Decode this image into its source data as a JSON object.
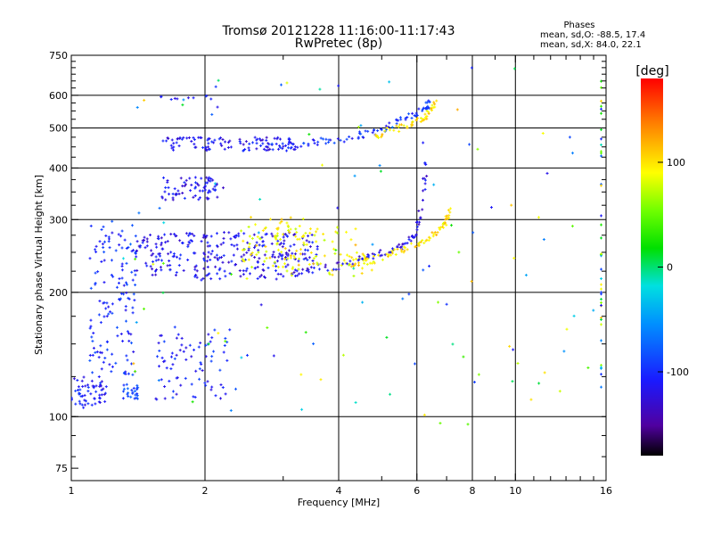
{
  "chart_data": {
    "type": "scatter",
    "title": "Tromsø 20121228 11:16:00-11:17:43",
    "subtitle": "RwPretec (8p)",
    "xlabel": "Frequency [MHz]",
    "ylabel": "Stationary phase Virtual Height [km]",
    "x_scale": "log",
    "y_scale": "log",
    "xlim": [
      1,
      16
    ],
    "ylim": [
      70,
      750
    ],
    "x_ticks": [
      1,
      2,
      4,
      6,
      8,
      10,
      16
    ],
    "y_ticks": [
      75,
      100,
      200,
      300,
      400,
      500,
      600,
      750
    ],
    "grid": true,
    "stats": {
      "heading": "Phases",
      "line1": "mean, sd,O: -88.5, 17.4",
      "line2": "mean, sd,X:  84.0, 22.1"
    },
    "colorbar": {
      "label": "[deg]",
      "range": [
        -180,
        180
      ],
      "ticks": [
        100,
        0,
        -100
      ]
    },
    "traces": [
      {
        "x": [
          1.0,
          1.2
        ],
        "y": [
          105,
          125
        ],
        "phase": -110,
        "n": 60
      },
      {
        "x": [
          1.1,
          1.4
        ],
        "y": [
          125,
          300
        ],
        "phase": -100,
        "n": 140
      },
      {
        "x": [
          1.3,
          1.42
        ],
        "y": [
          110,
          120
        ],
        "phase": -90,
        "n": 25
      },
      {
        "x": [
          1.55,
          2.3
        ],
        "y": [
          110,
          165
        ],
        "phase": -105,
        "n": 80
      },
      {
        "x": [
          1.4,
          3.6
        ],
        "y": [
          225,
          280
        ],
        "phase": -115,
        "n": 260
      },
      {
        "x": [
          2.5,
          3.4
        ],
        "y": [
          240,
          305
        ],
        "phase": 95,
        "n": 50
      },
      {
        "x": [
          3.0,
          4.8
        ],
        "y": [
          220,
          250
        ],
        "phase": 95,
        "n": 35
      },
      {
        "x": [
          1.6,
          2.2
        ],
        "y": [
          335,
          380
        ],
        "phase": -115,
        "n": 70
      },
      {
        "x": [
          1.6,
          3.2
        ],
        "y": [
          440,
          475
        ],
        "phase": -115,
        "n": 110
      },
      {
        "x": [
          1.55,
          2.1
        ],
        "y": [
          585,
          600
        ],
        "phase": -110,
        "n": 10
      }
    ],
    "curves": [
      {
        "x": [
          1.5,
          2.0,
          2.5,
          3.0,
          3.5,
          4.0,
          4.5,
          5.0,
          5.5,
          5.8,
          6.0,
          6.2,
          6.3
        ],
        "y": [
          222,
          218,
          218,
          220,
          225,
          232,
          240,
          248,
          258,
          268,
          285,
          330,
          430
        ],
        "phase": -118
      },
      {
        "x": [
          4.2,
          4.6,
          5.0,
          5.5,
          6.0,
          6.4,
          6.8,
          7.0,
          7.1
        ],
        "y": [
          235,
          238,
          243,
          252,
          262,
          272,
          285,
          300,
          320
        ],
        "phase": 100
      },
      {
        "x": [
          2.8,
          3.2,
          3.6,
          4.0,
          4.5,
          5.0,
          5.5,
          6.0,
          6.3,
          6.4
        ],
        "y": [
          450,
          455,
          462,
          470,
          480,
          495,
          520,
          540,
          560,
          580
        ],
        "phase": -100
      },
      {
        "x": [
          4.8,
          5.3,
          5.8,
          6.2,
          6.5,
          6.6
        ],
        "y": [
          480,
          495,
          510,
          530,
          555,
          580
        ],
        "phase": 100
      }
    ],
    "x_mode_scatter": {
      "x": [
        2.4,
        4.4
      ],
      "y": [
        230,
        290
      ],
      "phase": 85,
      "n": 60
    },
    "sparse_points": {
      "x": [
        1.3,
        15.5
      ],
      "y": [
        95,
        700
      ],
      "phase_range": [
        -120,
        120
      ],
      "n": 120
    },
    "edge_column": {
      "x": 15.6,
      "y": [
        110,
        700
      ],
      "n": 40
    }
  }
}
